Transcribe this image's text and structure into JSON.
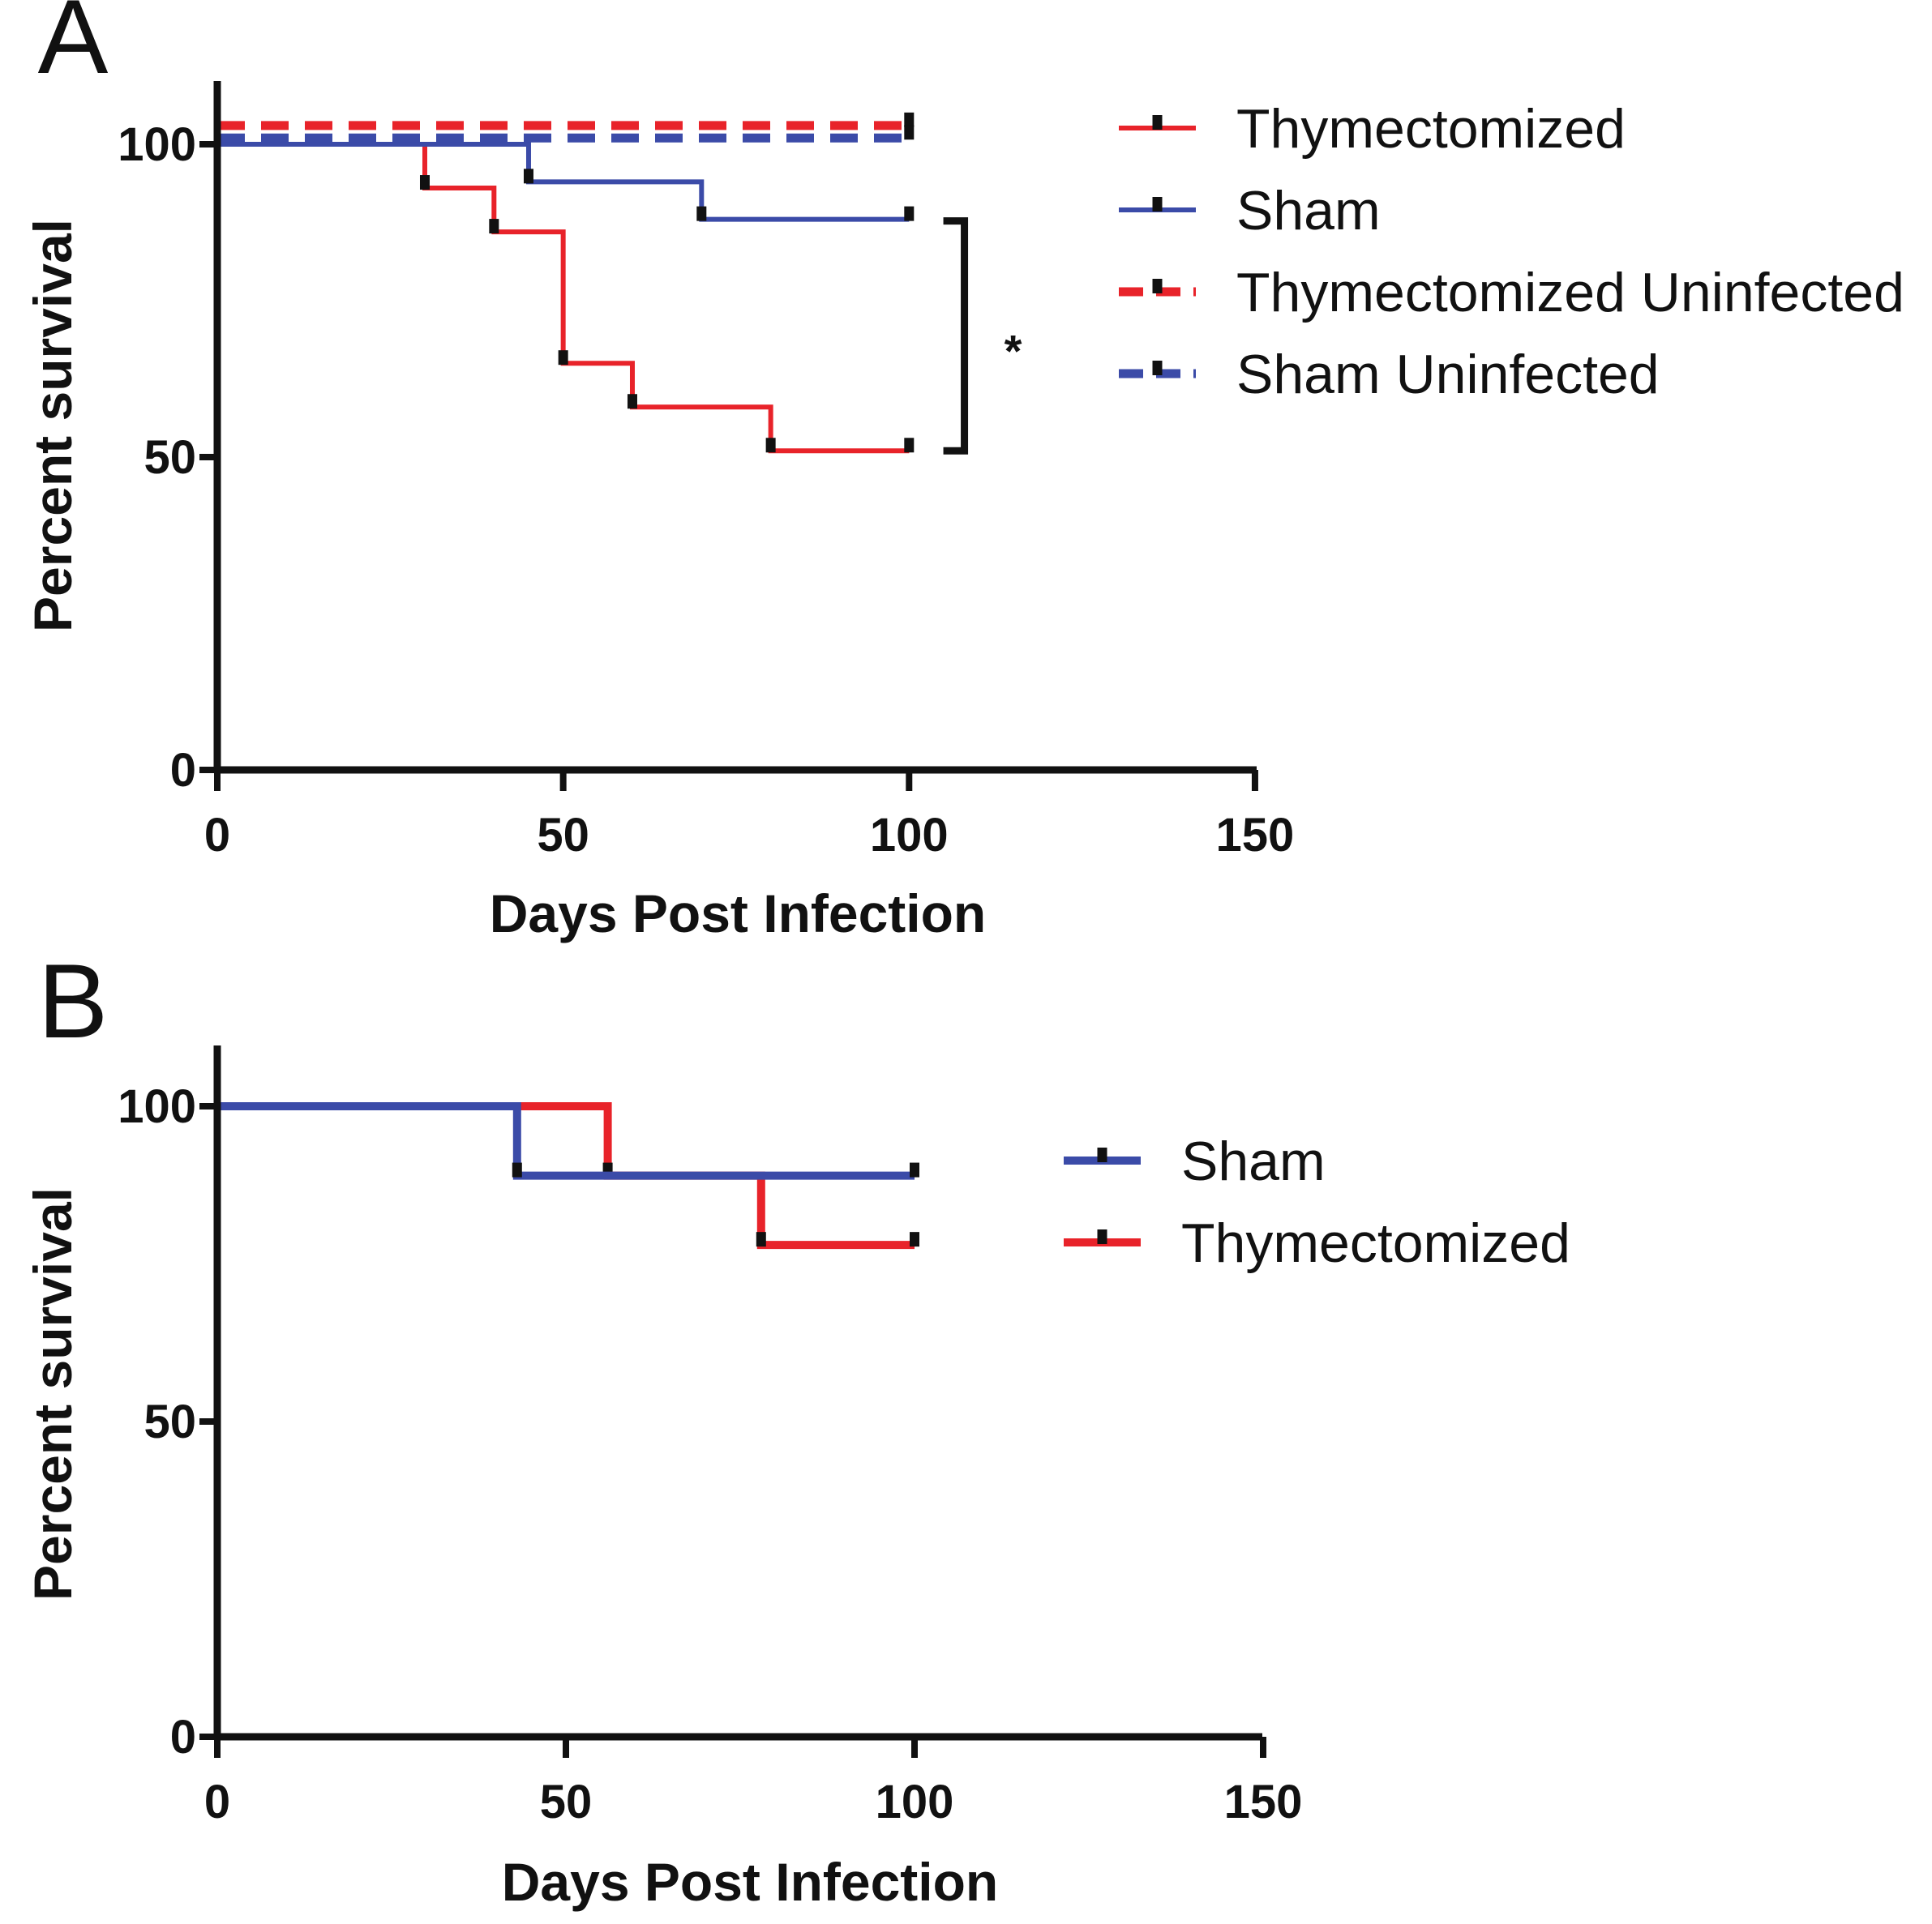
{
  "chart_data": [
    {
      "type": "line",
      "subtype": "kaplan-meier-survival",
      "panel_label": "A",
      "xlabel": "Days Post Infection",
      "ylabel": "Percent survival",
      "xlim": [
        0,
        150
      ],
      "ylim": [
        0,
        110
      ],
      "xticks": [
        0,
        50,
        100,
        150
      ],
      "yticks": [
        0,
        50,
        100
      ],
      "legend_position": "top-right",
      "significance": {
        "label": "*",
        "between": [
          "Thymectomized",
          "Sham"
        ]
      },
      "series": [
        {
          "name": "Thymectomized",
          "color": "#e8232a",
          "dashed": false,
          "steps": [
            [
              0,
              100
            ],
            [
              30,
              93
            ],
            [
              40,
              86
            ],
            [
              50,
              65
            ],
            [
              60,
              58
            ],
            [
              80,
              51
            ],
            [
              100,
              51
            ]
          ],
          "censor": [
            [
              30,
              93
            ],
            [
              40,
              86
            ],
            [
              50,
              65
            ],
            [
              60,
              58
            ],
            [
              80,
              51
            ],
            [
              100,
              51
            ]
          ]
        },
        {
          "name": "Sham",
          "color": "#3b4ba8",
          "dashed": false,
          "steps": [
            [
              0,
              100
            ],
            [
              45,
              94
            ],
            [
              70,
              88
            ],
            [
              100,
              88
            ]
          ],
          "censor": [
            [
              45,
              94
            ],
            [
              70,
              88
            ],
            [
              100,
              88
            ]
          ]
        },
        {
          "name": "Thymectomized Uninfected",
          "color": "#e8232a",
          "dashed": true,
          "steps": [
            [
              0,
              103
            ],
            [
              100,
              103
            ]
          ],
          "censor": [
            [
              100,
              103
            ]
          ]
        },
        {
          "name": "Sham Uninfected",
          "color": "#3b4ba8",
          "dashed": true,
          "steps": [
            [
              0,
              101
            ],
            [
              100,
              101
            ]
          ],
          "censor": [
            [
              100,
              101
            ]
          ]
        }
      ]
    },
    {
      "type": "line",
      "subtype": "kaplan-meier-survival",
      "panel_label": "B",
      "xlabel": "Days Post Infection",
      "ylabel": "Percent survival",
      "xlim": [
        0,
        150
      ],
      "ylim": [
        0,
        110
      ],
      "xticks": [
        0,
        50,
        100,
        150
      ],
      "yticks": [
        0,
        50,
        100
      ],
      "legend_position": "top-right",
      "series": [
        {
          "name": "Thymectomized",
          "color": "#e8232a",
          "dashed": false,
          "steps": [
            [
              0,
              100
            ],
            [
              56,
              89
            ],
            [
              78,
              78
            ],
            [
              100,
              78
            ]
          ],
          "censor": [
            [
              56,
              89
            ],
            [
              78,
              78
            ],
            [
              100,
              78
            ]
          ]
        },
        {
          "name": "Sham",
          "color": "#3b4ba8",
          "dashed": false,
          "steps": [
            [
              0,
              100
            ],
            [
              43,
              89
            ],
            [
              100,
              89
            ]
          ],
          "censor": [
            [
              43,
              89
            ],
            [
              100,
              89
            ]
          ]
        }
      ],
      "legend_order": [
        "Sham",
        "Thymectomized"
      ]
    }
  ]
}
